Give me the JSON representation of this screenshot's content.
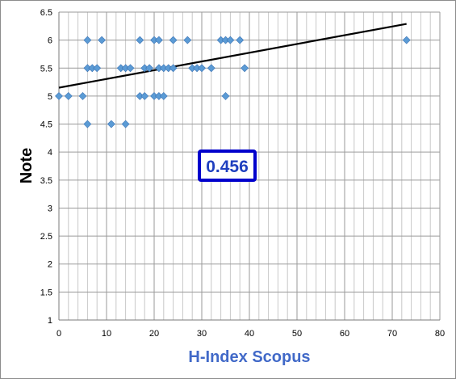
{
  "chart_data": {
    "type": "scatter",
    "xlabel": "H-Index Scopus",
    "ylabel": "Note",
    "xlim": [
      0,
      80
    ],
    "ylim": [
      1,
      6.5
    ],
    "x_ticks": [
      0,
      10,
      20,
      30,
      40,
      50,
      60,
      70,
      80
    ],
    "y_ticks": [
      1,
      1.5,
      2,
      2.5,
      3,
      3.5,
      4,
      4.5,
      5,
      5.5,
      6,
      6.5
    ],
    "x_tick_labels": [
      "0",
      "10",
      "20",
      "30",
      "40",
      "50",
      "60",
      "70",
      "80"
    ],
    "y_tick_labels": [
      "1",
      "1.5",
      "2",
      "2.5",
      "3",
      "3.5",
      "4",
      "4.5",
      "5",
      "5.5",
      "6",
      "6.5"
    ],
    "grid": true,
    "minor_x_gridlines_per_major": 5,
    "marker": "diamond",
    "marker_color": "#5b9bd5",
    "trendline": {
      "type": "linear",
      "x": [
        0,
        73
      ],
      "y": [
        5.15,
        6.29
      ],
      "color": "#000000"
    },
    "annotation": {
      "text": "0.456",
      "box_color": "#0000cc",
      "text_color": "#1f3fbf"
    },
    "xlabel_color": "#4169c8",
    "points": [
      [
        0,
        5
      ],
      [
        2,
        5
      ],
      [
        5,
        5
      ],
      [
        6,
        4.5
      ],
      [
        6,
        5.5
      ],
      [
        6,
        6
      ],
      [
        7,
        5.5
      ],
      [
        8,
        5.5
      ],
      [
        9,
        6
      ],
      [
        11,
        4.5
      ],
      [
        13,
        5.5
      ],
      [
        14,
        4.5
      ],
      [
        14,
        5.5
      ],
      [
        15,
        5.5
      ],
      [
        17,
        5
      ],
      [
        17,
        6
      ],
      [
        18,
        5
      ],
      [
        18,
        5.5
      ],
      [
        19,
        5.5
      ],
      [
        20,
        5
      ],
      [
        20,
        6
      ],
      [
        21,
        5
      ],
      [
        21,
        5.5
      ],
      [
        21,
        6
      ],
      [
        22,
        5
      ],
      [
        22,
        5.5
      ],
      [
        23,
        5.5
      ],
      [
        24,
        5.5
      ],
      [
        24,
        6
      ],
      [
        27,
        6
      ],
      [
        28,
        5.5
      ],
      [
        29,
        5.5
      ],
      [
        30,
        5.5
      ],
      [
        32,
        5.5
      ],
      [
        34,
        6
      ],
      [
        35,
        5
      ],
      [
        35,
        6
      ],
      [
        36,
        6
      ],
      [
        38,
        6
      ],
      [
        39,
        5.5
      ],
      [
        73,
        6
      ]
    ]
  }
}
